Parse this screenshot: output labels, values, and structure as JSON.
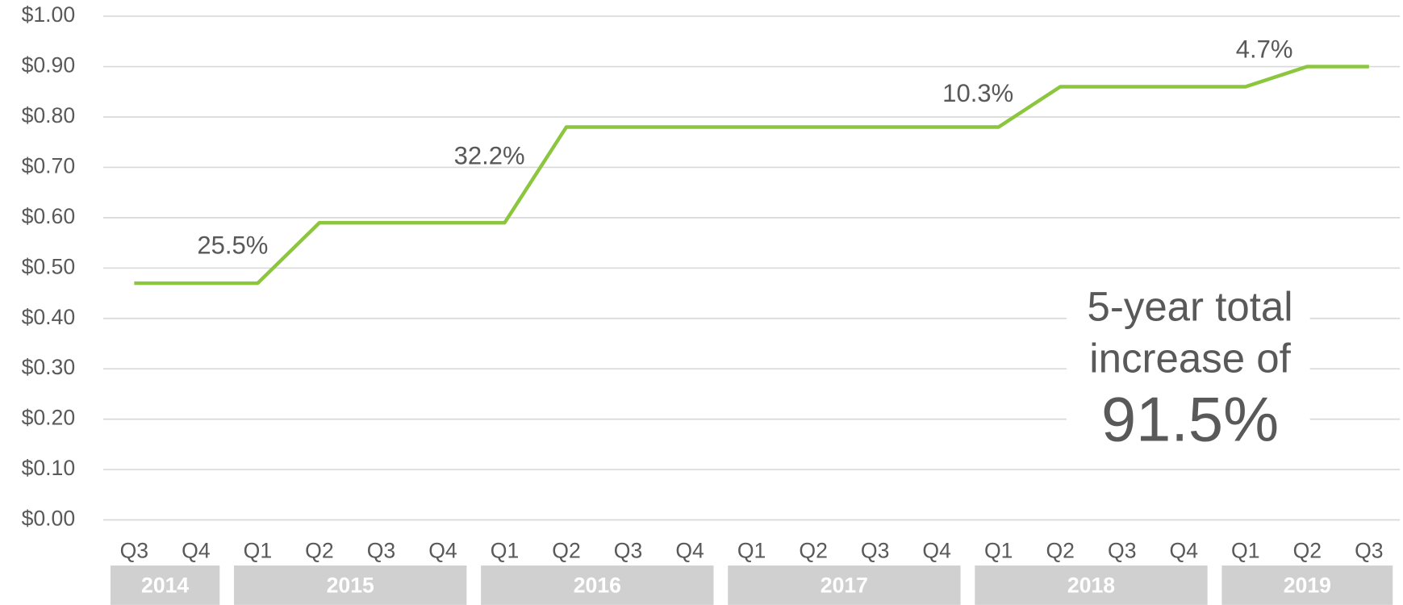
{
  "chart_data": {
    "type": "line",
    "groups": [
      {
        "label": "2014",
        "categories": [
          "Q3",
          "Q4"
        ]
      },
      {
        "label": "2015",
        "categories": [
          "Q1",
          "Q2",
          "Q3",
          "Q4"
        ]
      },
      {
        "label": "2016",
        "categories": [
          "Q1",
          "Q2",
          "Q3",
          "Q4"
        ]
      },
      {
        "label": "2017",
        "categories": [
          "Q1",
          "Q2",
          "Q3",
          "Q4"
        ]
      },
      {
        "label": "2018",
        "categories": [
          "Q1",
          "Q2",
          "Q3",
          "Q4"
        ]
      },
      {
        "label": "2019",
        "categories": [
          "Q1",
          "Q2",
          "Q3"
        ]
      }
    ],
    "series": [
      {
        "color": "#8cc63f",
        "values": [
          0.47,
          0.47,
          0.47,
          0.59,
          0.59,
          0.59,
          0.59,
          0.78,
          0.78,
          0.78,
          0.78,
          0.78,
          0.78,
          0.78,
          0.78,
          0.86,
          0.86,
          0.86,
          0.86,
          0.9,
          0.9
        ]
      }
    ],
    "ylim": [
      0,
      1
    ],
    "yticks": [
      {
        "value": 0,
        "label": "$0.00"
      },
      {
        "value": 0.1,
        "label": "$0.10"
      },
      {
        "value": 0.2,
        "label": "$0.20"
      },
      {
        "value": 0.3,
        "label": "$0.30"
      },
      {
        "value": 0.4,
        "label": "$0.40"
      },
      {
        "value": 0.5,
        "label": "$0.50"
      },
      {
        "value": 0.6,
        "label": "$0.60"
      },
      {
        "value": 0.7,
        "label": "$0.70"
      },
      {
        "value": 0.8,
        "label": "$0.80"
      },
      {
        "value": 0.9,
        "label": "$0.90"
      },
      {
        "value": 1,
        "label": "$1.00"
      }
    ],
    "grid": true,
    "annotations": [
      "25.5%",
      "32.2%",
      "10.3%",
      "4.7%"
    ],
    "callout": [
      "5-year total",
      "increase of",
      "91.5%"
    ]
  }
}
